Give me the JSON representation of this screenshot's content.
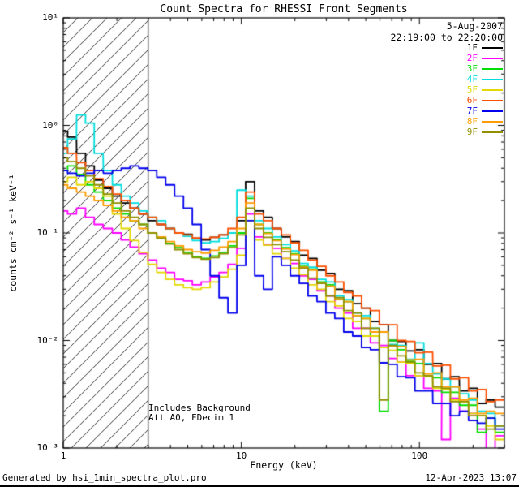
{
  "title": "Count Spectra for RHESSI Front Segments",
  "header": {
    "date": "5-Aug-2007",
    "interval": "22:19:00 to 22:20:00"
  },
  "annotations": {
    "line1": "Includes Background",
    "line2": "Att A0, FDecim 1"
  },
  "footer": {
    "left": "Generated by hsi_1min_spectra_plot.pro",
    "right": "12-Apr-2023 13:07"
  },
  "chart_data": {
    "type": "line",
    "mode": "histogram-step",
    "title": "Count Spectra for RHESSI Front Segments",
    "xlabel": "Energy (keV)",
    "ylabel": "counts cm⁻² s⁻¹ keV⁻¹",
    "xscale": "log",
    "yscale": "log",
    "xlim": [
      1,
      300
    ],
    "ylim": [
      0.001,
      10
    ],
    "grid": false,
    "legend_position": "top-right",
    "x_tick_labels": [
      {
        "v": 1,
        "t": "1"
      },
      {
        "v": 10,
        "t": "10"
      },
      {
        "v": 100,
        "t": "100"
      }
    ],
    "y_tick_labels": [
      {
        "v": 10,
        "t": "10¹"
      },
      {
        "v": 1,
        "t": "10⁰"
      },
      {
        "v": 0.1,
        "t": "10⁻¹"
      },
      {
        "v": 0.01,
        "t": "10⁻²"
      },
      {
        "v": 0.001,
        "t": "10⁻³"
      }
    ],
    "hatched_region": {
      "x_min_keV": 1,
      "x_max_keV": 3,
      "style": "diagonal-hatch"
    },
    "energies_keV": [
      1.0,
      1.12,
      1.26,
      1.41,
      1.58,
      1.78,
      2.0,
      2.24,
      2.51,
      2.82,
      3.16,
      3.55,
      3.98,
      4.47,
      5.01,
      5.62,
      6.31,
      7.08,
      7.94,
      8.91,
      10.0,
      11.2,
      12.6,
      14.1,
      15.8,
      17.8,
      20.0,
      22.4,
      25.1,
      28.2,
      31.6,
      35.5,
      39.8,
      44.7,
      50.1,
      56.2,
      63.1,
      70.8,
      79.4,
      89.1,
      100,
      112,
      126,
      141,
      158,
      178,
      200,
      224,
      251,
      282
    ],
    "series": [
      {
        "name": "1F",
        "color": "#000000",
        "values": [
          0.88,
          0.78,
          0.55,
          0.42,
          0.31,
          0.26,
          0.22,
          0.19,
          0.17,
          0.15,
          0.13,
          0.12,
          0.11,
          0.1,
          0.097,
          0.089,
          0.086,
          0.091,
          0.096,
          0.1,
          0.13,
          0.3,
          0.16,
          0.14,
          0.11,
          0.092,
          0.083,
          0.062,
          0.058,
          0.045,
          0.042,
          0.03,
          0.029,
          0.022,
          0.02,
          0.015,
          0.014,
          0.01,
          0.0098,
          0.008,
          0.0082,
          0.006,
          0.0061,
          0.0044,
          0.0046,
          0.0034,
          0.0036,
          0.0026,
          0.0028,
          0.0024
        ]
      },
      {
        "name": "2F",
        "color": "#ff00ff",
        "values": [
          0.16,
          0.15,
          0.17,
          0.14,
          0.12,
          0.11,
          0.1,
          0.086,
          0.074,
          0.064,
          0.056,
          0.047,
          0.043,
          0.037,
          0.036,
          0.033,
          0.035,
          0.039,
          0.043,
          0.051,
          0.072,
          0.15,
          0.092,
          0.078,
          0.072,
          0.058,
          0.052,
          0.04,
          0.037,
          0.029,
          0.026,
          0.02,
          0.018,
          0.013,
          0.013,
          0.0095,
          0.009,
          0.0068,
          0.0063,
          0.0047,
          0.0047,
          0.0036,
          0.0034,
          0.0012,
          0.0029,
          0.0022,
          0.0021,
          0.0015,
          0.0009,
          0.0013
        ]
      },
      {
        "name": "3F",
        "color": "#00dd00",
        "values": [
          0.38,
          0.42,
          0.35,
          0.28,
          0.24,
          0.2,
          0.17,
          0.15,
          0.13,
          0.12,
          0.1,
          0.091,
          0.08,
          0.073,
          0.066,
          0.06,
          0.058,
          0.061,
          0.066,
          0.076,
          0.1,
          0.21,
          0.12,
          0.1,
          0.087,
          0.073,
          0.064,
          0.049,
          0.046,
          0.035,
          0.033,
          0.024,
          0.023,
          0.017,
          0.016,
          0.011,
          0.0022,
          0.01,
          0.0082,
          0.0064,
          0.0061,
          0.0046,
          0.0045,
          0.0033,
          0.0033,
          0.0025,
          0.0025,
          0.0014,
          0.0019,
          0.0014
        ]
      },
      {
        "name": "4F",
        "color": "#00dddd",
        "values": [
          0.55,
          0.75,
          1.25,
          1.05,
          0.55,
          0.38,
          0.28,
          0.22,
          0.19,
          0.16,
          0.14,
          0.13,
          0.11,
          0.1,
          0.093,
          0.085,
          0.081,
          0.083,
          0.089,
          0.1,
          0.25,
          0.22,
          0.13,
          0.11,
          0.092,
          0.078,
          0.068,
          0.052,
          0.048,
          0.037,
          0.035,
          0.026,
          0.024,
          0.018,
          0.017,
          0.013,
          0.012,
          0.0092,
          0.009,
          0.0067,
          0.0095,
          0.0061,
          0.0049,
          0.0044,
          0.0037,
          0.0032,
          0.0028,
          0.0022,
          0.0021,
          0.0016
        ]
      },
      {
        "name": "5F",
        "color": "#e3d800",
        "values": [
          0.3,
          0.33,
          0.28,
          0.3,
          0.26,
          0.22,
          0.15,
          0.11,
          0.085,
          0.066,
          0.051,
          0.043,
          0.037,
          0.033,
          0.031,
          0.03,
          0.031,
          0.035,
          0.039,
          0.046,
          0.062,
          0.13,
          0.086,
          0.077,
          0.064,
          0.058,
          0.047,
          0.041,
          0.033,
          0.03,
          0.023,
          0.021,
          0.016,
          0.015,
          0.011,
          0.011,
          0.0086,
          0.0081,
          0.0063,
          0.0061,
          0.0047,
          0.0046,
          0.0036,
          0.0035,
          0.0028,
          0.0027,
          0.0021,
          0.002,
          0.0016,
          0.0012
        ]
      },
      {
        "name": "6F",
        "color": "#ff4f00",
        "values": [
          0.62,
          0.55,
          0.45,
          0.38,
          0.32,
          0.27,
          0.23,
          0.2,
          0.17,
          0.15,
          0.14,
          0.12,
          0.11,
          0.1,
          0.096,
          0.09,
          0.088,
          0.091,
          0.096,
          0.11,
          0.14,
          0.24,
          0.15,
          0.13,
          0.11,
          0.096,
          0.081,
          0.069,
          0.056,
          0.049,
          0.04,
          0.035,
          0.028,
          0.026,
          0.02,
          0.019,
          0.014,
          0.014,
          0.01,
          0.0098,
          0.0077,
          0.0078,
          0.0058,
          0.0059,
          0.0044,
          0.0045,
          0.0034,
          0.0035,
          0.0027,
          0.0028
        ]
      },
      {
        "name": "7F",
        "color": "#0000ee",
        "values": [
          0.38,
          0.36,
          0.34,
          0.36,
          0.38,
          0.36,
          0.38,
          0.4,
          0.42,
          0.4,
          0.38,
          0.33,
          0.28,
          0.22,
          0.17,
          0.12,
          0.07,
          0.04,
          0.025,
          0.018,
          0.05,
          0.13,
          0.04,
          0.03,
          0.06,
          0.05,
          0.04,
          0.034,
          0.026,
          0.023,
          0.018,
          0.016,
          0.012,
          0.011,
          0.0086,
          0.0082,
          0.0062,
          0.006,
          0.0046,
          0.0045,
          0.0034,
          0.0034,
          0.0026,
          0.0026,
          0.002,
          0.0022,
          0.0018,
          0.0017,
          0.0019,
          0.0015
        ]
      },
      {
        "name": "8F",
        "color": "#ff9c00",
        "values": [
          0.28,
          0.26,
          0.24,
          0.22,
          0.2,
          0.18,
          0.16,
          0.14,
          0.13,
          0.11,
          0.1,
          0.092,
          0.083,
          0.076,
          0.07,
          0.067,
          0.065,
          0.069,
          0.074,
          0.083,
          0.11,
          0.19,
          0.12,
          0.099,
          0.085,
          0.071,
          0.063,
          0.048,
          0.045,
          0.034,
          0.032,
          0.024,
          0.023,
          0.017,
          0.016,
          0.012,
          0.012,
          0.0089,
          0.0088,
          0.0066,
          0.0067,
          0.0049,
          0.005,
          0.0037,
          0.0037,
          0.0028,
          0.0029,
          0.0021,
          0.0022,
          0.0021
        ]
      },
      {
        "name": "9F",
        "color": "#8f8f00",
        "values": [
          0.5,
          0.46,
          0.4,
          0.34,
          0.28,
          0.23,
          0.19,
          0.16,
          0.14,
          0.12,
          0.1,
          0.089,
          0.079,
          0.07,
          0.064,
          0.059,
          0.057,
          0.059,
          0.064,
          0.073,
          0.096,
          0.17,
          0.11,
          0.091,
          0.078,
          0.067,
          0.056,
          0.047,
          0.038,
          0.034,
          0.026,
          0.025,
          0.019,
          0.018,
          0.013,
          0.013,
          0.0028,
          0.009,
          0.0072,
          0.0063,
          0.005,
          0.0047,
          0.0037,
          0.0036,
          0.0027,
          0.0027,
          0.002,
          0.002,
          0.0015,
          0.0016
        ]
      }
    ]
  }
}
